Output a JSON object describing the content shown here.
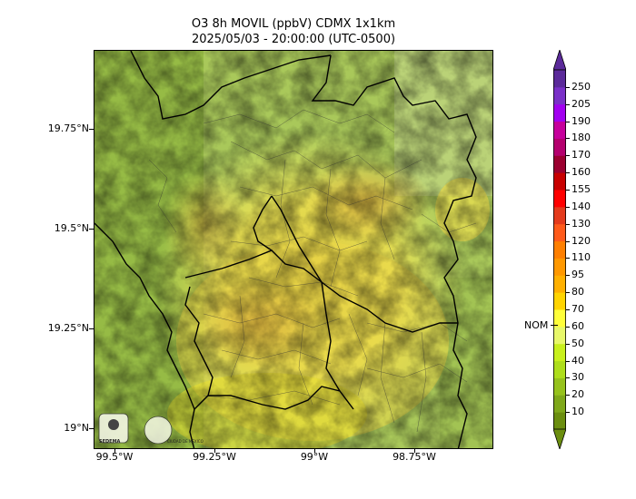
{
  "title": {
    "line1": "O3 8h MOVIL (ppbV) CDMX 1x1km",
    "line2": "2025/05/03 - 20:00:00 (UTC-0500)"
  },
  "axes": {
    "y_labels": [
      "19.75°N",
      "19.5°N",
      "19.25°N",
      "19°N"
    ],
    "x_labels": [
      "99.5°W",
      "99.25°W",
      "99°W",
      "98.75°W"
    ]
  },
  "colorbar": {
    "levels": [
      "10",
      "20",
      "30",
      "40",
      "50",
      "60",
      "70",
      "80",
      "95",
      "110",
      "120",
      "130",
      "140",
      "155",
      "160",
      "170",
      "180",
      "190",
      "205",
      "250"
    ],
    "colors": [
      "#6b8e0f",
      "#7fa81a",
      "#96c21c",
      "#aede1b",
      "#c8f01c",
      "#e8f86a",
      "#ffff3a",
      "#ffd400",
      "#ffb000",
      "#ff9800",
      "#ff7f00",
      "#ff5a1a",
      "#e43a1c",
      "#ff0000",
      "#c80000",
      "#9b0030",
      "#b4006e",
      "#c6009c",
      "#a200f0",
      "#7a30c8",
      "#5b2a9a"
    ],
    "nom_label": "NOM"
  },
  "logos": {
    "left": "SEDEMA",
    "right": "CIUDAD DE MÉXICO"
  }
}
